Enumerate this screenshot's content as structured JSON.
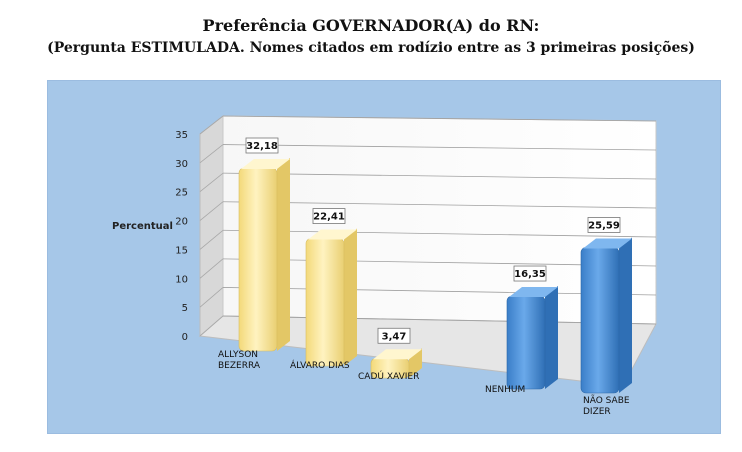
{
  "chart_data": {
    "type": "bar",
    "title": "Preferência GOVERNADOR(A) do RN:",
    "subtitle": "(Pergunta ESTIMULADA. Nomes citados em rodízio entre as 3 primeiras posições)",
    "xlabel": "",
    "ylabel": "Percentual",
    "ylim": [
      0,
      35
    ],
    "yticks": [
      "0",
      "5",
      "10",
      "15",
      "20",
      "25",
      "30",
      "35"
    ],
    "categories": [
      [
        "ALLYSON",
        "BEZERRA"
      ],
      [
        "ÁLVARO DIAS"
      ],
      [
        "CADÚ XAVIER"
      ],
      [
        "NENHUM"
      ],
      [
        "NÃO SABE",
        "DIZER"
      ]
    ],
    "values": [
      32.18,
      22.41,
      3.47,
      16.35,
      25.59
    ],
    "data_labels": [
      "32,18",
      "22,41",
      "3,47",
      "16,35",
      "25,59"
    ],
    "group": [
      "candidate",
      "candidate",
      "candidate",
      "other",
      "other"
    ],
    "grid": true,
    "legend": "none",
    "colors": {
      "candidate": "#fbe79a",
      "candidate_dark": "#e3c766",
      "other": "#4a8fd7",
      "other_dark": "#2f6fb5",
      "background": "#a6c7e8"
    }
  }
}
